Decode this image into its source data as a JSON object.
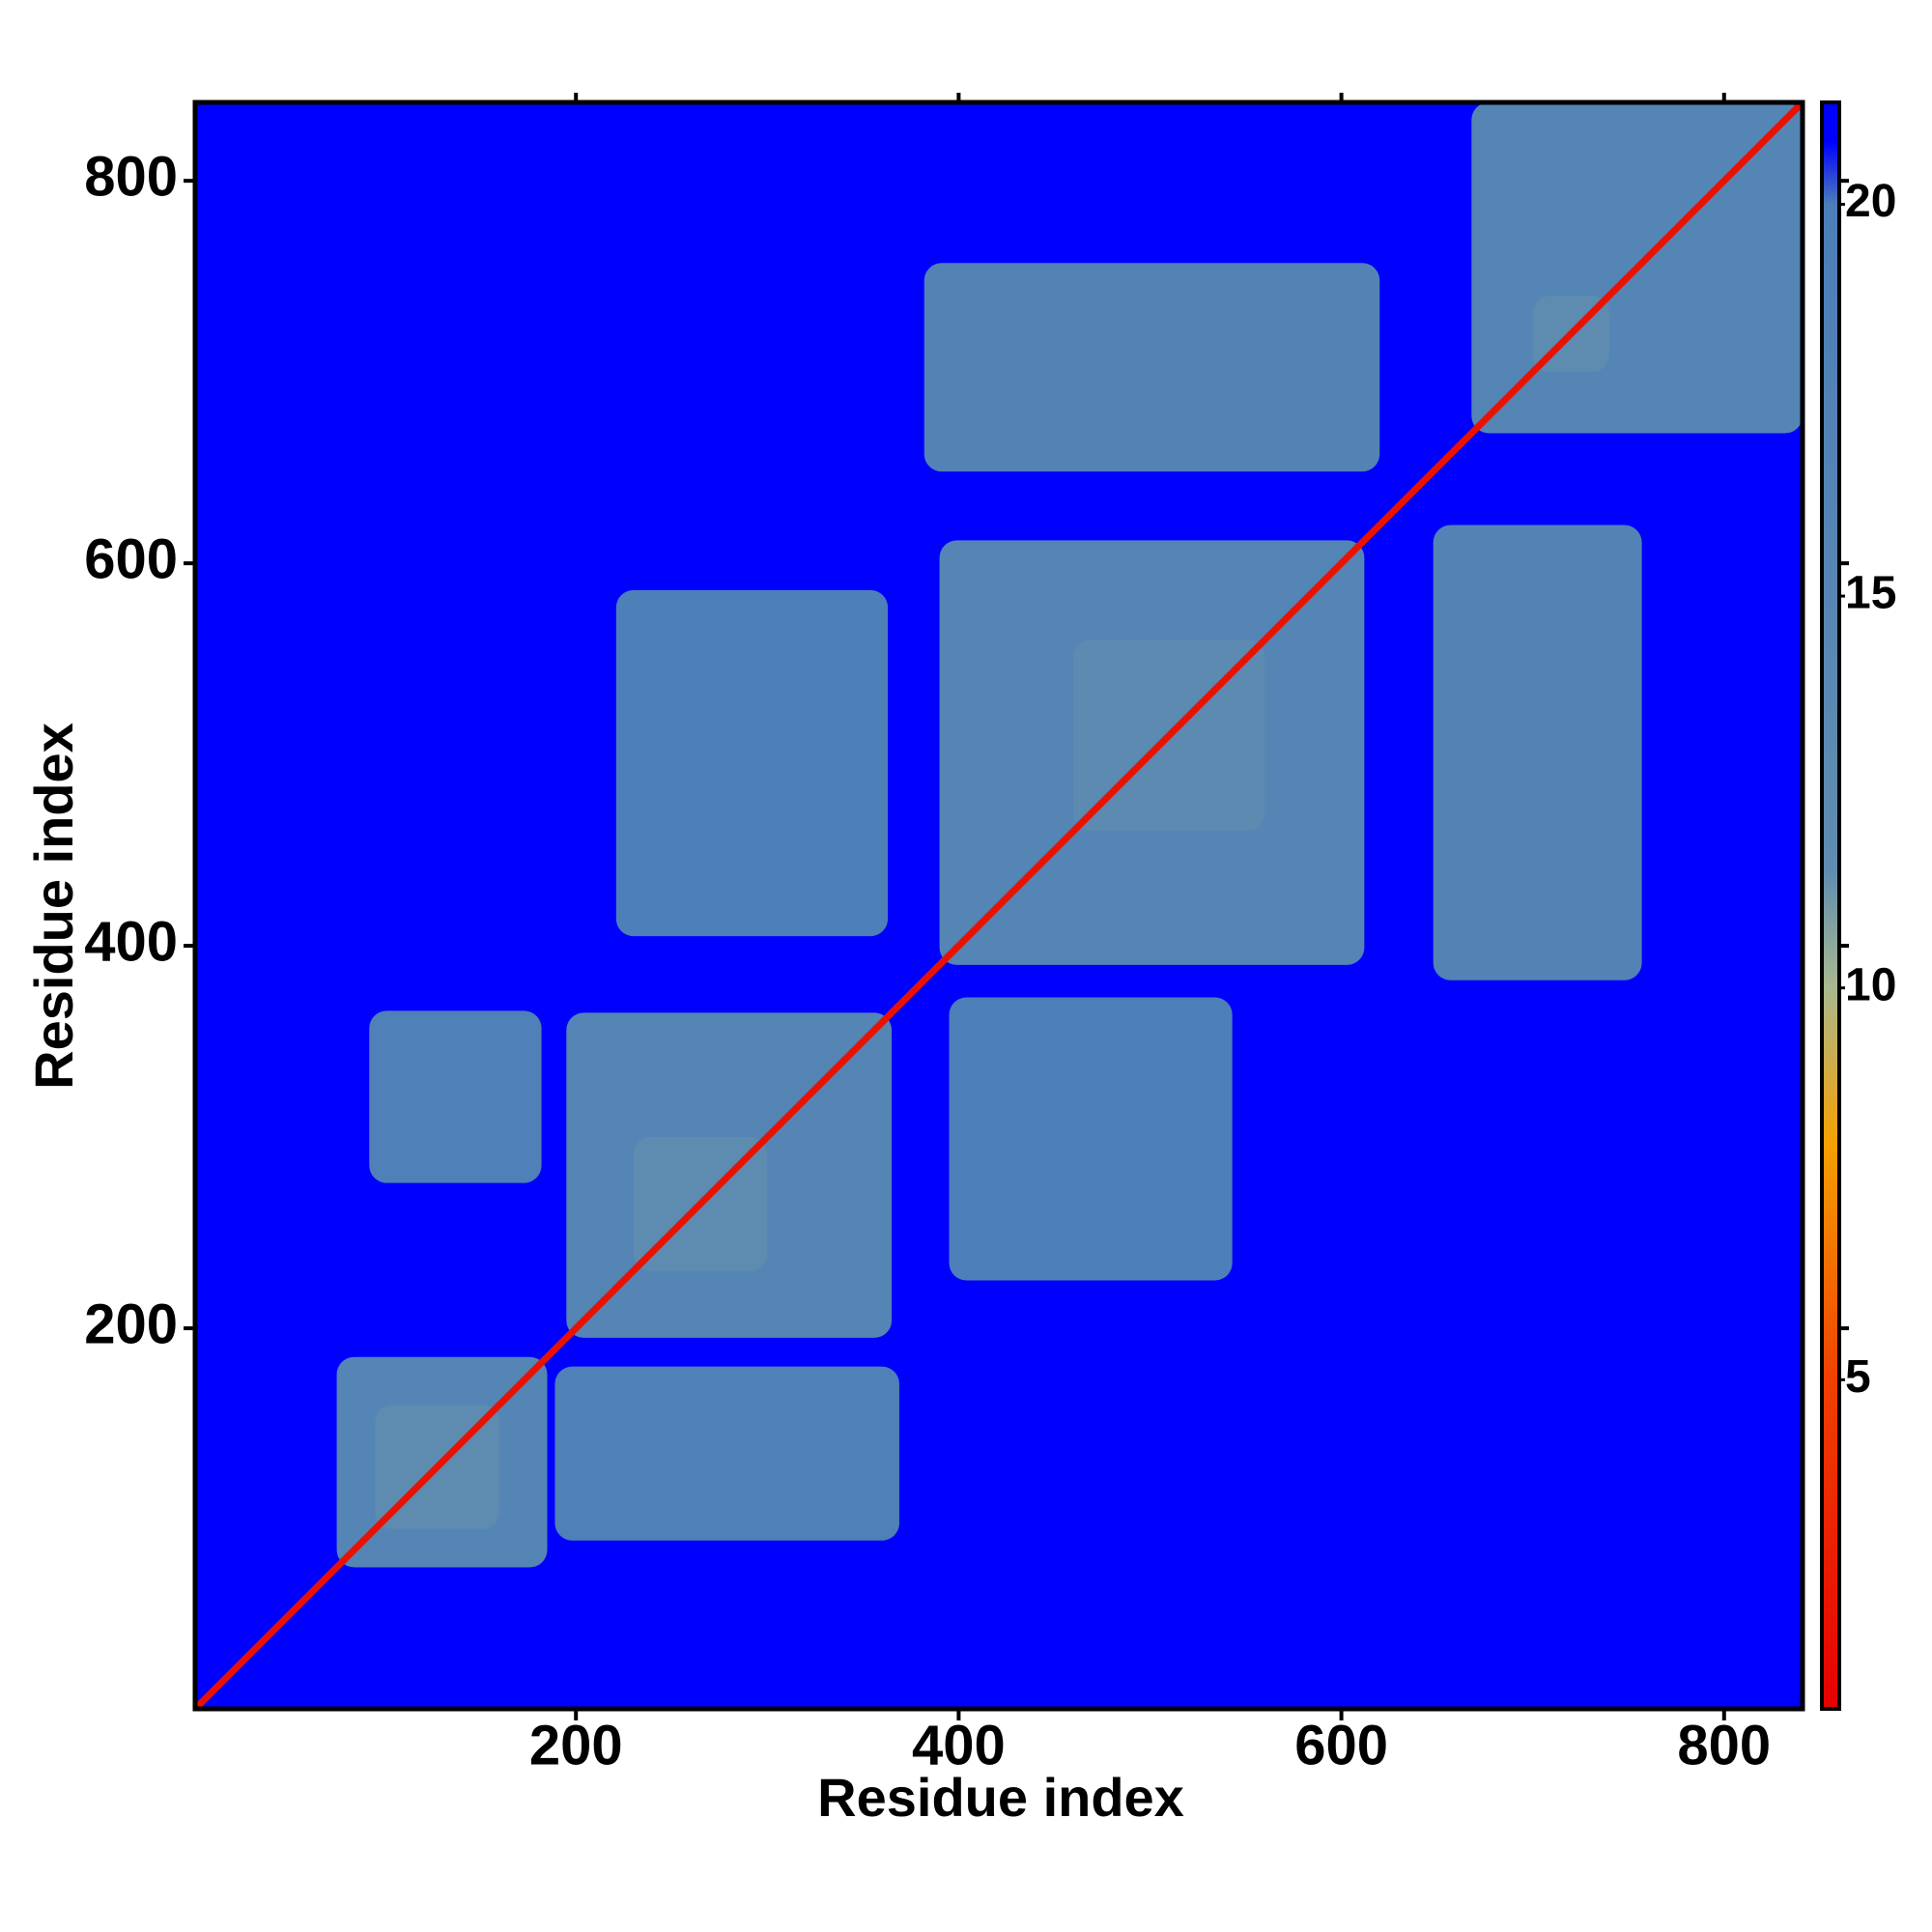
{
  "chart_data": {
    "type": "heatmap",
    "x_label": "Residue index",
    "y_label": "Residue index",
    "xlim": [
      1,
      841
    ],
    "ylim": [
      1,
      841
    ],
    "xticks": [
      200,
      400,
      600,
      800
    ],
    "yticks": [
      200,
      400,
      600,
      800
    ],
    "clim": [
      0.8,
      21.3
    ],
    "cticks": [
      5,
      10,
      15,
      20
    ],
    "colorscale": [
      [
        0.8,
        "#e60000"
      ],
      [
        5,
        "#f04000"
      ],
      [
        8,
        "#f5a000"
      ],
      [
        10,
        "#a9b88f"
      ],
      [
        11.5,
        "#5f8cb0"
      ],
      [
        20,
        "#4c7eb8"
      ],
      [
        20.8,
        "#0000ff"
      ],
      [
        21.3,
        "#0000ff"
      ]
    ],
    "background_value": 21.3,
    "diagonal_value": 2,
    "blocks": [
      {
        "x": [
          75,
          185
        ],
        "y": [
          75,
          185
        ],
        "value": 16
      },
      {
        "x": [
          195,
          365
        ],
        "y": [
          195,
          365
        ],
        "value": 16
      },
      {
        "x": [
          390,
          612
        ],
        "y": [
          390,
          612
        ],
        "value": 16
      },
      {
        "x": [
          668,
          841
        ],
        "y": [
          668,
          841
        ],
        "value": 16
      },
      {
        "x": [
          382,
          620
        ],
        "y": [
          648,
          757
        ],
        "value": 17
      },
      {
        "x": [
          648,
          757
        ],
        "y": [
          382,
          620
        ],
        "value": 17
      },
      {
        "x": [
          92,
          182
        ],
        "y": [
          276,
          366
        ],
        "value": 18.5
      },
      {
        "x": [
          189,
          369
        ],
        "y": [
          89,
          180
        ],
        "value": 18.5
      },
      {
        "x": [
          395,
          543
        ],
        "y": [
          225,
          373
        ],
        "value": 19.5
      },
      {
        "x": [
          221,
          363
        ],
        "y": [
          405,
          586
        ],
        "value": 19.5
      },
      {
        "x": [
          95,
          160
        ],
        "y": [
          95,
          160
        ],
        "value": 12
      },
      {
        "x": [
          230,
          300
        ],
        "y": [
          230,
          300
        ],
        "value": 12
      },
      {
        "x": [
          460,
          560
        ],
        "y": [
          460,
          560
        ],
        "value": 13
      },
      {
        "x": [
          700,
          740
        ],
        "y": [
          700,
          740
        ],
        "value": 12
      }
    ]
  }
}
